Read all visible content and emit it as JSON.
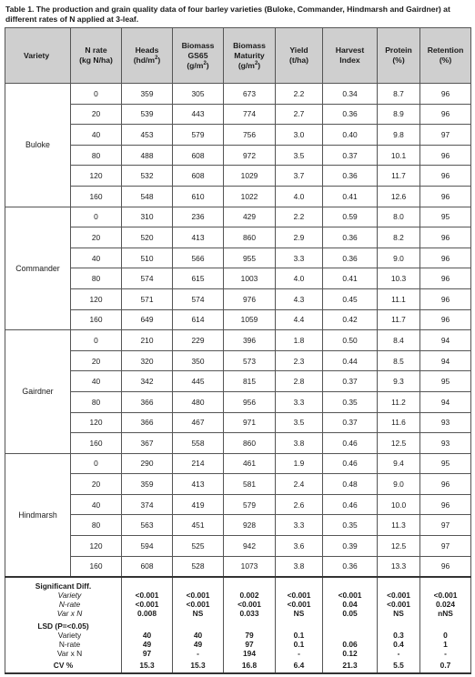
{
  "caption": "Table 1.  The production and grain quality data of four barley varieties (Buloke, Commander, Hindmarsh and Gairdner) at different rates of N applied at 3-leaf.",
  "headers": {
    "variety": "Variety",
    "nrate": [
      "N rate",
      "(kg N/ha)"
    ],
    "heads": [
      "Heads",
      "(hd/m",
      "2",
      ")"
    ],
    "biomass_gs65": [
      "Biomass",
      "GS65",
      "(g/m",
      "2",
      ")"
    ],
    "biomass_maturity": [
      "Biomass",
      "Maturity",
      "(g/m",
      "2",
      ")"
    ],
    "yield": [
      "Yield",
      "(t/ha)"
    ],
    "harvest_index": [
      "Harvest",
      "Index"
    ],
    "protein": [
      "Protein",
      "(%)"
    ],
    "retention": [
      "Retention",
      "(%)"
    ]
  },
  "varieties": [
    {
      "name": "Buloke",
      "rows": [
        [
          "0",
          "359",
          "305",
          "673",
          "2.2",
          "0.34",
          "8.7",
          "96"
        ],
        [
          "20",
          "539",
          "443",
          "774",
          "2.7",
          "0.36",
          "8.9",
          "96"
        ],
        [
          "40",
          "453",
          "579",
          "756",
          "3.0",
          "0.40",
          "9.8",
          "97"
        ],
        [
          "80",
          "488",
          "608",
          "972",
          "3.5",
          "0.37",
          "10.1",
          "96"
        ],
        [
          "120",
          "532",
          "608",
          "1029",
          "3.7",
          "0.36",
          "11.7",
          "96"
        ],
        [
          "160",
          "548",
          "610",
          "1022",
          "4.0",
          "0.41",
          "12.6",
          "96"
        ]
      ]
    },
    {
      "name": "Commander",
      "rows": [
        [
          "0",
          "310",
          "236",
          "429",
          "2.2",
          "0.59",
          "8.0",
          "95"
        ],
        [
          "20",
          "520",
          "413",
          "860",
          "2.9",
          "0.36",
          "8.2",
          "96"
        ],
        [
          "40",
          "510",
          "566",
          "955",
          "3.3",
          "0.36",
          "9.0",
          "96"
        ],
        [
          "80",
          "574",
          "615",
          "1003",
          "4.0",
          "0.41",
          "10.3",
          "96"
        ],
        [
          "120",
          "571",
          "574",
          "976",
          "4.3",
          "0.45",
          "11.1",
          "96"
        ],
        [
          "160",
          "649",
          "614",
          "1059",
          "4.4",
          "0.42",
          "11.7",
          "96"
        ]
      ]
    },
    {
      "name": "Gairdner",
      "rows": [
        [
          "0",
          "210",
          "229",
          "396",
          "1.8",
          "0.50",
          "8.4",
          "94"
        ],
        [
          "20",
          "320",
          "350",
          "573",
          "2.3",
          "0.44",
          "8.5",
          "94"
        ],
        [
          "40",
          "342",
          "445",
          "815",
          "2.8",
          "0.37",
          "9.3",
          "95"
        ],
        [
          "80",
          "366",
          "480",
          "956",
          "3.3",
          "0.35",
          "11.2",
          "94"
        ],
        [
          "120",
          "366",
          "467",
          "971",
          "3.5",
          "0.37",
          "11.6",
          "93"
        ],
        [
          "160",
          "367",
          "558",
          "860",
          "3.8",
          "0.46",
          "12.5",
          "93"
        ]
      ]
    },
    {
      "name": "Hindmarsh",
      "rows": [
        [
          "0",
          "290",
          "214",
          "461",
          "1.9",
          "0.46",
          "9.4",
          "95"
        ],
        [
          "20",
          "359",
          "413",
          "581",
          "2.4",
          "0.48",
          "9.0",
          "96"
        ],
        [
          "40",
          "374",
          "419",
          "579",
          "2.6",
          "0.46",
          "10.0",
          "96"
        ],
        [
          "80",
          "563",
          "451",
          "928",
          "3.3",
          "0.35",
          "11.3",
          "97"
        ],
        [
          "120",
          "594",
          "525",
          "942",
          "3.6",
          "0.39",
          "12.5",
          "97"
        ],
        [
          "160",
          "608",
          "528",
          "1073",
          "3.8",
          "0.36",
          "13.3",
          "96"
        ]
      ]
    }
  ],
  "significance": {
    "title": "Significant Diff.",
    "rows": [
      {
        "label": "Variety",
        "values": [
          "<0.001",
          "<0.001",
          "0.002",
          "<0.001",
          "<0.001",
          "<0.001",
          "<0.001"
        ]
      },
      {
        "label": "N-rate",
        "values": [
          "<0.001",
          "<0.001",
          "<0.001",
          "<0.001",
          "0.04",
          "<0.001",
          "0.024"
        ]
      },
      {
        "label": "Var x N",
        "values": [
          "0.008",
          "NS",
          "0.033",
          "NS",
          "0.05",
          "NS",
          "nNS"
        ]
      }
    ]
  },
  "lsd": {
    "title": "LSD (P=<0.05)",
    "rows": [
      {
        "label": "Variety",
        "values": [
          "40",
          "40",
          "79",
          "0.1",
          "",
          "0.3",
          "0"
        ]
      },
      {
        "label": "N-rate",
        "values": [
          "49",
          "49",
          "97",
          "0.1",
          "0.06",
          "0.4",
          "1"
        ]
      },
      {
        "label": "Var x N",
        "values": [
          "97",
          "-",
          "194",
          "-",
          "0.12",
          "-",
          "-"
        ]
      }
    ]
  },
  "cv": {
    "label": "CV %",
    "values": [
      "15.3",
      "15.3",
      "16.8",
      "6.4",
      "21.3",
      "5.5",
      "0.7"
    ]
  }
}
